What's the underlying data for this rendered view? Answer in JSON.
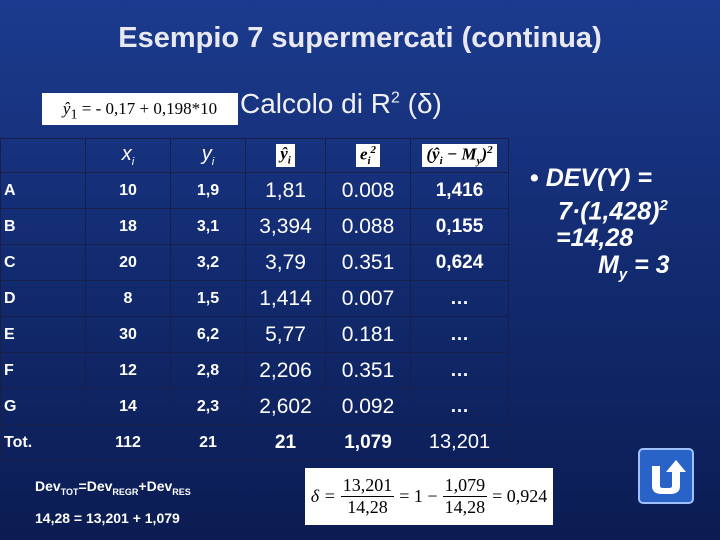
{
  "title": "Esempio 7 supermercati (continua)",
  "formula": {
    "lhs": "ŷ",
    "sub": "1",
    "rhs": "= - 0,17 + 0,198*10"
  },
  "subtitle": {
    "text": "Calcolo di R",
    "sup": "2",
    "rest": " (δ)"
  },
  "table": {
    "header": [
      {
        "base": "x",
        "sub": "i"
      },
      {
        "base": "y",
        "sub": "i"
      },
      {
        "base": "ŷ",
        "sub": "i"
      },
      {
        "base": "e",
        "sub": "i",
        "sup": "2"
      },
      {
        "base": "(ŷ",
        "sub": "i",
        "rest": " − M",
        "sub2": "y",
        "close": ")",
        "sup": "2"
      }
    ],
    "rows": [
      [
        "A",
        "10",
        "1,9",
        "1,81",
        "0.008",
        "1,416"
      ],
      [
        "B",
        "18",
        "3,1",
        "3,394",
        "0.088",
        "0,155"
      ],
      [
        "C",
        "20",
        "3,2",
        "3,79",
        "0.351",
        "0,624"
      ],
      [
        "D",
        "8",
        "1,5",
        "1,414",
        "0.007",
        "…"
      ],
      [
        "E",
        "30",
        "6,2",
        "5,77",
        "0.181",
        "…"
      ],
      [
        "F",
        "12",
        "2,8",
        "2,206",
        "0.351",
        "…"
      ],
      [
        "G",
        "14",
        "2,3",
        "2,602",
        "0.092",
        "…"
      ],
      [
        "Tot.",
        "112",
        "21",
        "21",
        "1,079",
        "13,201"
      ]
    ]
  },
  "bullet": {
    "l1": "DEV(Y) =",
    "l2": "7·(1,428)",
    "l2sup": "2",
    "l3": "=14,28",
    "l4": "M",
    "l4sub": "y",
    "l4rest": " = 3"
  },
  "decomposition": [
    {
      "text": "Dev",
      "sub": "TOT"
    },
    {
      "text": "=Dev",
      "sub": "REGR"
    },
    {
      "text": "+Dev",
      "sub": "RES"
    }
  ],
  "check": "14,28 = 13,201 + 1,079",
  "delta": {
    "symbol": "δ =",
    "frac1": {
      "num": "13,201",
      "den": "14,28"
    },
    "mid": "= 1 −",
    "frac2": {
      "num": "1,079",
      "den": "14,28"
    },
    "result": "= 0,924"
  }
}
